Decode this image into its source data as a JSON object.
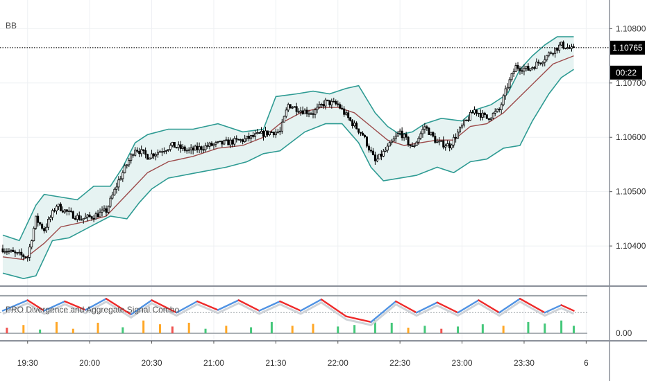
{
  "indicators": {
    "main_label": "BB",
    "oscillator_label": "PRO Divergence and Aggregate Signal Combo"
  },
  "price_badge": {
    "price": "1.10765",
    "countdown": "00:22"
  },
  "colors": {
    "candle_up": "#ffffff",
    "candle_down": "#000000",
    "band": "#2e9b93",
    "band_fill": "#e6f3f2",
    "basis": "#9c4a4a",
    "osc_up": "#4f92e3",
    "osc_down": "#ee2a2a",
    "hist_green": "#44c77a",
    "hist_orange": "#ffa726",
    "hist_red": "#ef5350",
    "grid": "#eef0f3"
  },
  "chart_data": [
    {
      "type": "candlestick",
      "title": "BB",
      "y_ticks": [
        "1.10800",
        "1.10700",
        "1.10600",
        "1.10500",
        "1.10400"
      ],
      "y_tick_values": [
        1.108,
        1.107,
        1.106,
        1.105,
        1.104
      ],
      "ylim": [
        1.1033,
        1.1084
      ],
      "x_ticks": [
        "19:30",
        "20:00",
        "20:30",
        "21:00",
        "21:30",
        "22:00",
        "22:30",
        "23:00",
        "23:30",
        "6"
      ],
      "x_tick_index": [
        12,
        42,
        72,
        102,
        132,
        162,
        192,
        222,
        252,
        282
      ],
      "last_price": 1.10765,
      "close_path": [
        [
          0,
          1.10395
        ],
        [
          6,
          1.10385
        ],
        [
          12,
          1.1038
        ],
        [
          16,
          1.1045
        ],
        [
          20,
          1.1043
        ],
        [
          26,
          1.10475
        ],
        [
          32,
          1.1046
        ],
        [
          38,
          1.1045
        ],
        [
          44,
          1.10455
        ],
        [
          50,
          1.10465
        ],
        [
          56,
          1.1052
        ],
        [
          64,
          1.1058
        ],
        [
          70,
          1.10565
        ],
        [
          76,
          1.10575
        ],
        [
          82,
          1.10585
        ],
        [
          90,
          1.10575
        ],
        [
          100,
          1.10585
        ],
        [
          108,
          1.1059
        ],
        [
          116,
          1.10595
        ],
        [
          124,
          1.10605
        ],
        [
          130,
          1.1061
        ],
        [
          134,
          1.1061
        ],
        [
          138,
          1.1066
        ],
        [
          144,
          1.1065
        ],
        [
          150,
          1.10645
        ],
        [
          156,
          1.10665
        ],
        [
          162,
          1.1066
        ],
        [
          168,
          1.1063
        ],
        [
          174,
          1.10605
        ],
        [
          180,
          1.10555
        ],
        [
          186,
          1.1058
        ],
        [
          192,
          1.1061
        ],
        [
          198,
          1.1058
        ],
        [
          204,
          1.1062
        ],
        [
          210,
          1.1059
        ],
        [
          216,
          1.10585
        ],
        [
          222,
          1.1062
        ],
        [
          228,
          1.1065
        ],
        [
          234,
          1.10635
        ],
        [
          240,
          1.1065
        ],
        [
          244,
          1.10695
        ],
        [
          248,
          1.1073
        ],
        [
          254,
          1.10725
        ],
        [
          260,
          1.1074
        ],
        [
          266,
          1.1076
        ],
        [
          270,
          1.1077
        ],
        [
          276,
          1.1076
        ]
      ],
      "upper_band": [
        [
          0,
          1.1042
        ],
        [
          8,
          1.1041
        ],
        [
          16,
          1.10475
        ],
        [
          20,
          1.10495
        ],
        [
          28,
          1.1049
        ],
        [
          36,
          1.10485
        ],
        [
          44,
          1.1051
        ],
        [
          52,
          1.1051
        ],
        [
          58,
          1.10545
        ],
        [
          64,
          1.1059
        ],
        [
          70,
          1.10605
        ],
        [
          80,
          1.10615
        ],
        [
          92,
          1.10615
        ],
        [
          104,
          1.10625
        ],
        [
          116,
          1.1061
        ],
        [
          126,
          1.10615
        ],
        [
          132,
          1.10675
        ],
        [
          142,
          1.1068
        ],
        [
          150,
          1.10685
        ],
        [
          158,
          1.1068
        ],
        [
          166,
          1.1069
        ],
        [
          172,
          1.10695
        ],
        [
          180,
          1.10645
        ],
        [
          186,
          1.1062
        ],
        [
          192,
          1.10605
        ],
        [
          198,
          1.1061
        ],
        [
          204,
          1.10625
        ],
        [
          212,
          1.10635
        ],
        [
          222,
          1.1063
        ],
        [
          228,
          1.1065
        ],
        [
          236,
          1.1066
        ],
        [
          244,
          1.1068
        ],
        [
          250,
          1.10725
        ],
        [
          256,
          1.1075
        ],
        [
          262,
          1.1077
        ],
        [
          268,
          1.10785
        ],
        [
          276,
          1.10785
        ]
      ],
      "basis": [
        [
          0,
          1.1038
        ],
        [
          10,
          1.10375
        ],
        [
          20,
          1.10405
        ],
        [
          28,
          1.10435
        ],
        [
          40,
          1.10445
        ],
        [
          50,
          1.10455
        ],
        [
          60,
          1.10495
        ],
        [
          70,
          1.10535
        ],
        [
          80,
          1.10555
        ],
        [
          92,
          1.10565
        ],
        [
          104,
          1.1058
        ],
        [
          116,
          1.10585
        ],
        [
          126,
          1.106
        ],
        [
          134,
          1.10625
        ],
        [
          144,
          1.10645
        ],
        [
          154,
          1.10655
        ],
        [
          162,
          1.10655
        ],
        [
          170,
          1.10645
        ],
        [
          178,
          1.1062
        ],
        [
          186,
          1.10595
        ],
        [
          194,
          1.10585
        ],
        [
          202,
          1.1059
        ],
        [
          210,
          1.10595
        ],
        [
          218,
          1.10595
        ],
        [
          226,
          1.1062
        ],
        [
          234,
          1.10625
        ],
        [
          242,
          1.10645
        ],
        [
          250,
          1.10675
        ],
        [
          258,
          1.10705
        ],
        [
          266,
          1.10735
        ],
        [
          276,
          1.1075
        ]
      ],
      "lower_band": [
        [
          0,
          1.1035
        ],
        [
          10,
          1.1034
        ],
        [
          16,
          1.10345
        ],
        [
          24,
          1.1041
        ],
        [
          32,
          1.10415
        ],
        [
          42,
          1.10435
        ],
        [
          52,
          1.10455
        ],
        [
          60,
          1.1045
        ],
        [
          66,
          1.1048
        ],
        [
          72,
          1.10505
        ],
        [
          80,
          1.10525
        ],
        [
          94,
          1.10535
        ],
        [
          108,
          1.10545
        ],
        [
          118,
          1.10555
        ],
        [
          126,
          1.1057
        ],
        [
          134,
          1.10575
        ],
        [
          146,
          1.1061
        ],
        [
          156,
          1.10625
        ],
        [
          164,
          1.10625
        ],
        [
          172,
          1.1059
        ],
        [
          178,
          1.10545
        ],
        [
          184,
          1.1052
        ],
        [
          192,
          1.10525
        ],
        [
          200,
          1.1053
        ],
        [
          210,
          1.10545
        ],
        [
          218,
          1.10535
        ],
        [
          226,
          1.10555
        ],
        [
          234,
          1.1056
        ],
        [
          242,
          1.1058
        ],
        [
          250,
          1.10585
        ],
        [
          256,
          1.1063
        ],
        [
          264,
          1.1068
        ],
        [
          270,
          1.1071
        ],
        [
          276,
          1.10725
        ]
      ]
    },
    {
      "type": "line",
      "title": "PRO Divergence and Aggregate Signal Combo",
      "y_ticks": [
        "0.00"
      ],
      "ylim": [
        -0.2,
        1.2
      ],
      "upper_level": 1.0,
      "mid_level": 0.55,
      "zero_level": 0.0,
      "oscillator": [
        [
          0,
          0.6
        ],
        [
          12,
          0.88
        ],
        [
          20,
          0.6
        ],
        [
          30,
          0.85
        ],
        [
          40,
          0.62
        ],
        [
          50,
          0.92
        ],
        [
          62,
          0.5
        ],
        [
          72,
          0.88
        ],
        [
          84,
          0.55
        ],
        [
          94,
          0.85
        ],
        [
          104,
          0.62
        ],
        [
          114,
          0.88
        ],
        [
          124,
          0.6
        ],
        [
          134,
          0.85
        ],
        [
          144,
          0.6
        ],
        [
          154,
          0.9
        ],
        [
          166,
          0.45
        ],
        [
          178,
          0.3
        ],
        [
          190,
          0.85
        ],
        [
          200,
          0.55
        ],
        [
          210,
          0.82
        ],
        [
          220,
          0.55
        ],
        [
          230,
          0.88
        ],
        [
          240,
          0.55
        ],
        [
          250,
          0.92
        ],
        [
          262,
          0.55
        ],
        [
          270,
          0.75
        ],
        [
          276,
          0.6
        ]
      ],
      "histogram": [
        [
          2,
          0.15,
          "red"
        ],
        [
          10,
          0.22,
          "orange"
        ],
        [
          18,
          0.1,
          "green"
        ],
        [
          26,
          0.3,
          "orange"
        ],
        [
          34,
          0.12,
          "orange"
        ],
        [
          46,
          0.28,
          "orange"
        ],
        [
          58,
          0.16,
          "green"
        ],
        [
          68,
          0.34,
          "orange"
        ],
        [
          76,
          0.24,
          "orange"
        ],
        [
          82,
          0.18,
          "red"
        ],
        [
          90,
          0.28,
          "orange"
        ],
        [
          98,
          0.12,
          "green"
        ],
        [
          108,
          0.2,
          "orange"
        ],
        [
          120,
          0.16,
          "green"
        ],
        [
          130,
          0.3,
          "green"
        ],
        [
          140,
          0.2,
          "orange"
        ],
        [
          150,
          0.25,
          "orange"
        ],
        [
          162,
          0.18,
          "green"
        ],
        [
          170,
          0.22,
          "green"
        ],
        [
          180,
          0.35,
          "green"
        ],
        [
          188,
          0.28,
          "green"
        ],
        [
          196,
          0.15,
          "orange"
        ],
        [
          204,
          0.2,
          "green"
        ],
        [
          212,
          0.12,
          "red"
        ],
        [
          220,
          0.18,
          "green"
        ],
        [
          232,
          0.24,
          "green"
        ],
        [
          242,
          0.2,
          "orange"
        ],
        [
          254,
          0.3,
          "green"
        ],
        [
          262,
          0.26,
          "green"
        ],
        [
          270,
          0.34,
          "green"
        ],
        [
          276,
          0.2,
          "green"
        ]
      ]
    }
  ]
}
